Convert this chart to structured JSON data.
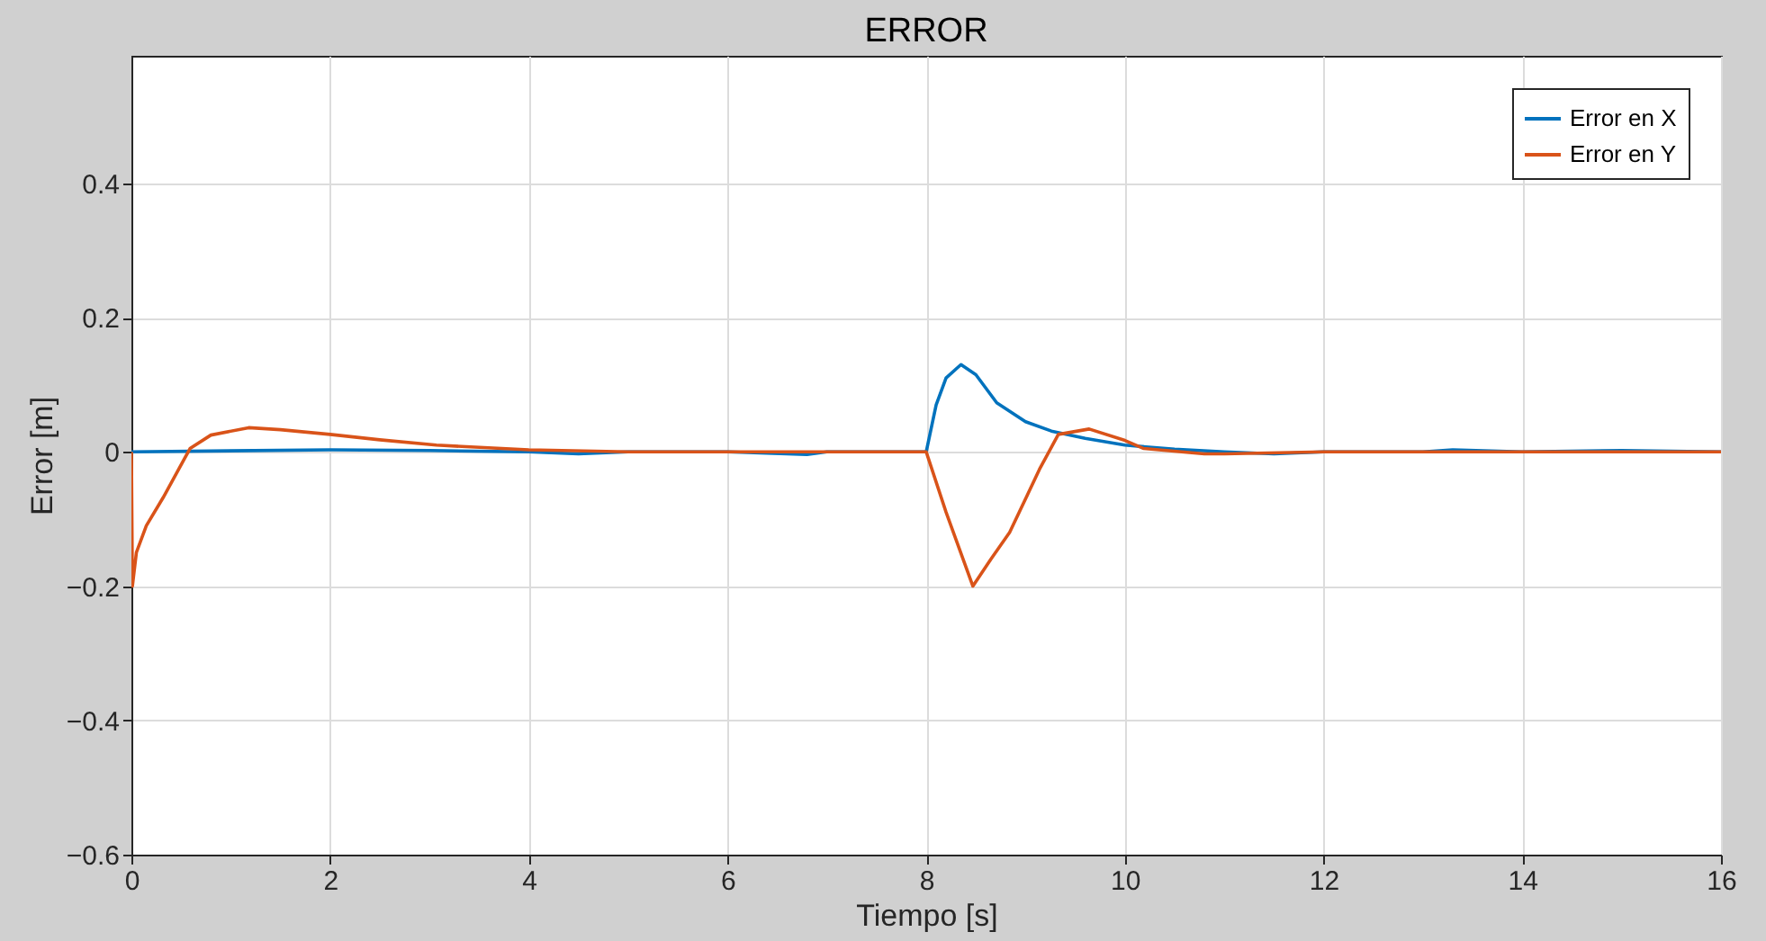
{
  "chart_data": {
    "type": "line",
    "title": "ERROR",
    "xlabel": "Tiempo [s]",
    "ylabel": "Error [m]",
    "xlim": [
      0,
      16
    ],
    "xticks": [
      0,
      2,
      4,
      6,
      8,
      10,
      12,
      14,
      16
    ],
    "ylim": [
      -0.6,
      0.59
    ],
    "yticks": [
      -0.6,
      -0.4,
      -0.2,
      0,
      0.2,
      0.4
    ],
    "grid": true,
    "legend": "top right",
    "line_style": "solid",
    "marker": "none",
    "series": [
      {
        "name": "Error en X",
        "color": "#0072bd",
        "x": [
          0,
          2,
          3,
          4,
          4.5,
          5,
          6,
          6.8,
          7,
          8,
          8.1,
          8.2,
          8.35,
          8.5,
          8.71,
          9,
          9.26,
          9.6,
          10,
          10.5,
          11,
          11.5,
          12,
          13,
          13.3,
          14,
          15,
          16
        ],
        "values": [
          0,
          0.003,
          0.002,
          0,
          -0.003,
          0,
          0,
          -0.004,
          0,
          0,
          0.07,
          0.11,
          0.13,
          0.115,
          0.073,
          0.045,
          0.031,
          0.02,
          0.01,
          0.004,
          0,
          -0.003,
          0,
          0,
          0.003,
          0,
          0.002,
          0
        ]
      },
      {
        "name": "Error en Y",
        "color": "#d95319",
        "x": [
          0,
          0.01,
          0.05,
          0.15,
          0.32,
          0.59,
          0.8,
          1.18,
          1.5,
          2,
          2.5,
          3.07,
          4,
          5,
          6,
          7,
          8,
          8.2,
          8.47,
          8.65,
          8.84,
          9,
          9.14,
          9.33,
          9.64,
          10,
          10.19,
          10.8,
          11,
          12,
          13,
          14,
          15,
          16
        ],
        "values": [
          0,
          -0.2,
          -0.15,
          -0.11,
          -0.068,
          0.005,
          0.025,
          0.036,
          0.033,
          0.026,
          0.018,
          0.01,
          0.003,
          0,
          0,
          0,
          0,
          -0.09,
          -0.2,
          -0.16,
          -0.12,
          -0.07,
          -0.026,
          0.026,
          0.034,
          0.017,
          0.005,
          -0.003,
          -0.003,
          0,
          0,
          0,
          0,
          0
        ]
      }
    ]
  }
}
